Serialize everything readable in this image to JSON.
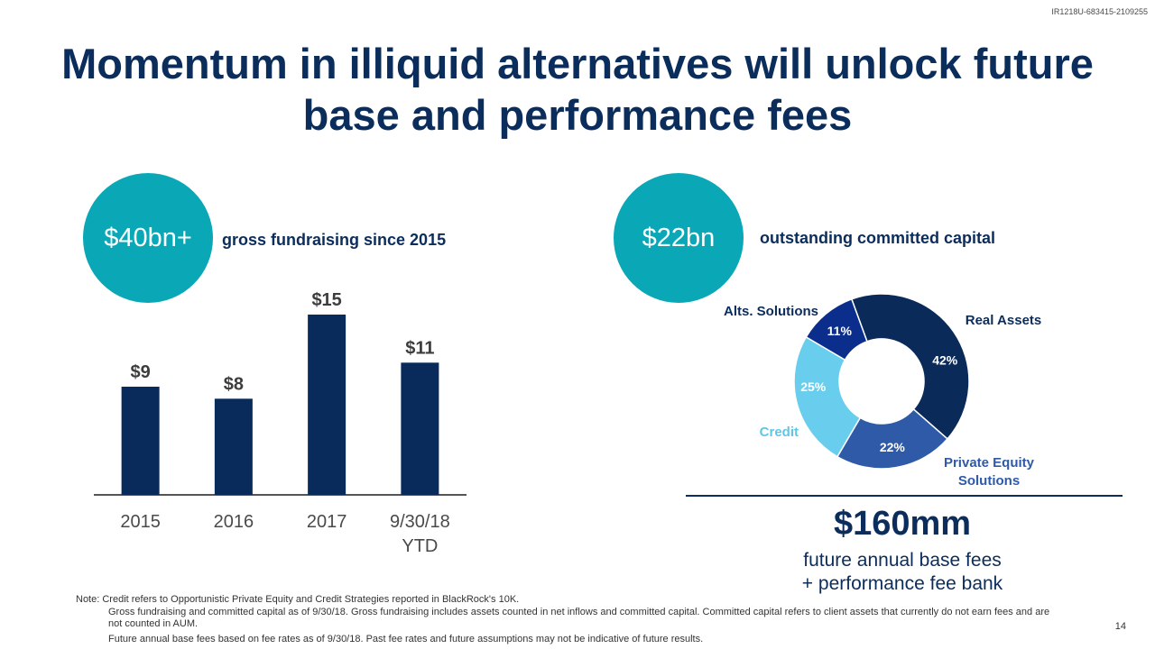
{
  "doc_id": "IR1218U-683415-2109255",
  "title": "Momentum in illiquid alternatives will unlock future base and performance fees",
  "left_callout": {
    "value": "$40bn+",
    "caption": "gross fundraising since 2015"
  },
  "right_callout": {
    "value": "$22bn",
    "caption": "outstanding committed capital"
  },
  "fee_summary": {
    "amount": "$160mm",
    "line1": "future annual base fees",
    "line2": "+ performance fee bank"
  },
  "notes": {
    "line0": "Note: Credit refers to Opportunistic Private Equity and Credit Strategies reported in BlackRock's 10K.",
    "line1": "Gross fundraising and committed capital as of 9/30/18. Gross fundraising includes assets counted in net inflows and committed capital. Committed capital refers to client assets that currently do not earn fees and are not counted in AUM.",
    "line2": "Future annual base fees based on fee rates as of 9/30/18. Past fee rates and future assumptions may not be indicative of future results."
  },
  "page_number": "14",
  "colors": {
    "navy": "#0b2d5b",
    "teal": "#0aa8b7",
    "bar": "#082b5c",
    "real_assets": "#0a2a5a",
    "private_equity": "#2e5aa8",
    "credit": "#69cdee",
    "alts": "#0b2e8c"
  },
  "chart_data": [
    {
      "type": "bar",
      "title": "gross fundraising since 2015",
      "categories": [
        "2015",
        "2016",
        "2017",
        "9/30/18 YTD"
      ],
      "category_lines": [
        [
          "2015"
        ],
        [
          "2016"
        ],
        [
          "2017"
        ],
        [
          "9/30/18",
          "YTD"
        ]
      ],
      "values": [
        9,
        8,
        15,
        11
      ],
      "value_labels": [
        "$9",
        "$8",
        "$15",
        "$11"
      ],
      "unit": "$bn",
      "ylim": [
        0,
        15
      ],
      "grid": false
    },
    {
      "type": "pie",
      "style": "donut",
      "title": "outstanding committed capital",
      "slices": [
        {
          "name": "Real Assets",
          "name_lines": [
            "Real Assets"
          ],
          "value": 42,
          "label": "42%",
          "color": "#0a2a5a",
          "label_color": "#0b2d5b",
          "pct_color": "#ffffff"
        },
        {
          "name": "Private Equity Solutions",
          "name_lines": [
            "Private Equity",
            "Solutions"
          ],
          "value": 22,
          "label": "22%",
          "color": "#2e5aa8",
          "label_color": "#2e5aa8",
          "pct_color": "#ffffff"
        },
        {
          "name": "Credit",
          "name_lines": [
            "Credit"
          ],
          "value": 25,
          "label": "25%",
          "color": "#69cdee",
          "label_color": "#5ec6ea",
          "pct_color": "#ffffff"
        },
        {
          "name": "Alts. Solutions",
          "name_lines": [
            "Alts. Solutions"
          ],
          "value": 11,
          "label": "11%",
          "color": "#0b2e8c",
          "label_color": "#0b2d5b",
          "pct_color": "#ffffff"
        }
      ]
    }
  ]
}
